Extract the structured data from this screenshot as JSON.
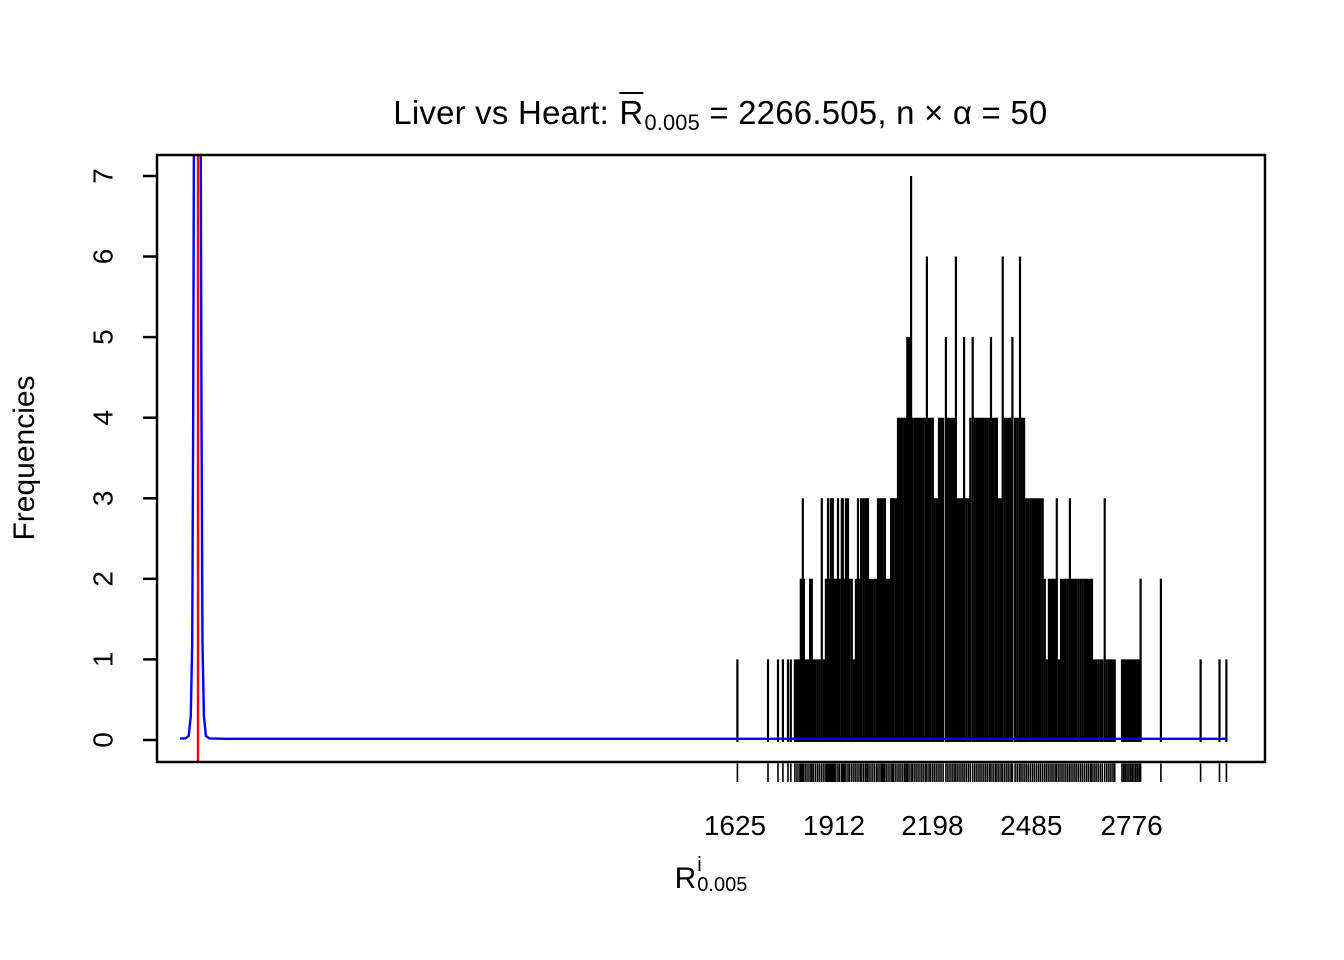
{
  "canvas": {
    "background": "#ffffff"
  },
  "chart_data": {
    "type": "bar",
    "subtype": "spike-histogram-with-density-and-rug",
    "title": {
      "prefix": "Liver vs Heart: ",
      "stat": "R",
      "stat_sub": "0.005",
      "rest": " = 2266.505, n × α = 50"
    },
    "xlabel": {
      "base": "R",
      "sup": "i",
      "sub": "0.005"
    },
    "ylabel": "Frequencies",
    "x_tick_labels": [
      1625,
      1912,
      2198,
      2485,
      2776
    ],
    "y_tick_labels": [
      0,
      1,
      2,
      3,
      4,
      5,
      6,
      7
    ],
    "xlim": [
      -52,
      3163
    ],
    "ylim": [
      -0.273,
      7.26
    ],
    "grid": false,
    "legend": null,
    "colors": {
      "spikes": "#000000",
      "density": "#0000ff",
      "observed_line": "#ff0000",
      "frame": "#000000",
      "text": "#000000"
    },
    "observed_vline_x": 67,
    "rug_from_spikes": true,
    "density_points": [
      [
        15,
        0.02
      ],
      [
        30,
        0.02
      ],
      [
        40,
        0.05
      ],
      [
        46,
        0.3
      ],
      [
        50,
        1.2
      ],
      [
        53,
        4
      ],
      [
        56,
        9
      ],
      [
        60,
        13
      ],
      [
        65,
        14
      ],
      [
        70,
        13
      ],
      [
        74,
        9
      ],
      [
        77,
        4
      ],
      [
        80,
        1.2
      ],
      [
        84,
        0.3
      ],
      [
        90,
        0.05
      ],
      [
        100,
        0.02
      ],
      [
        150,
        0.015
      ],
      [
        3052,
        0.015
      ]
    ],
    "spikes": [
      [
        1632,
        1
      ],
      [
        1721,
        1
      ],
      [
        1750,
        1
      ],
      [
        1764,
        1
      ],
      [
        1779,
        1
      ],
      [
        1787,
        1
      ],
      [
        1799,
        1
      ],
      [
        1805,
        1
      ],
      [
        1811,
        1
      ],
      [
        1816,
        2
      ],
      [
        1820,
        2
      ],
      [
        1822,
        3
      ],
      [
        1825,
        2
      ],
      [
        1831,
        1
      ],
      [
        1837,
        1
      ],
      [
        1843,
        2
      ],
      [
        1848,
        2
      ],
      [
        1853,
        1
      ],
      [
        1859,
        1
      ],
      [
        1865,
        1
      ],
      [
        1871,
        1
      ],
      [
        1877,
        3
      ],
      [
        1883,
        1
      ],
      [
        1889,
        2
      ],
      [
        1893,
        2
      ],
      [
        1895,
        3
      ],
      [
        1899,
        2
      ],
      [
        1903,
        3
      ],
      [
        1907,
        2
      ],
      [
        1909,
        3
      ],
      [
        1913,
        2
      ],
      [
        1918,
        2
      ],
      [
        1924,
        3
      ],
      [
        1929,
        2
      ],
      [
        1935,
        3
      ],
      [
        1938,
        3
      ],
      [
        1942,
        2
      ],
      [
        1947,
        3
      ],
      [
        1953,
        3
      ],
      [
        1958,
        2
      ],
      [
        1964,
        2
      ],
      [
        1970,
        1
      ],
      [
        1976,
        2
      ],
      [
        1982,
        3
      ],
      [
        1988,
        2
      ],
      [
        1991,
        3
      ],
      [
        1997,
        3
      ],
      [
        2003,
        3
      ],
      [
        2008,
        3
      ],
      [
        2011,
        3
      ],
      [
        2017,
        2
      ],
      [
        2023,
        2
      ],
      [
        2029,
        2
      ],
      [
        2035,
        2
      ],
      [
        2040,
        3
      ],
      [
        2046,
        3
      ],
      [
        2051,
        3
      ],
      [
        2054,
        3
      ],
      [
        2058,
        2
      ],
      [
        2060,
        3
      ],
      [
        2066,
        2
      ],
      [
        2072,
        2
      ],
      [
        2078,
        3
      ],
      [
        2083,
        3
      ],
      [
        2086,
        3
      ],
      [
        2092,
        3
      ],
      [
        2098,
        4
      ],
      [
        2104,
        4
      ],
      [
        2110,
        4
      ],
      [
        2116,
        4
      ],
      [
        2121,
        4
      ],
      [
        2125,
        5
      ],
      [
        2130,
        5
      ],
      [
        2136,
        7
      ],
      [
        2141,
        4
      ],
      [
        2147,
        4
      ],
      [
        2153,
        4
      ],
      [
        2159,
        4
      ],
      [
        2165,
        4
      ],
      [
        2171,
        4
      ],
      [
        2177,
        4
      ],
      [
        2182,
        6
      ],
      [
        2188,
        4
      ],
      [
        2193,
        4
      ],
      [
        2199,
        4
      ],
      [
        2205,
        3
      ],
      [
        2211,
        3
      ],
      [
        2217,
        4
      ],
      [
        2223,
        4
      ],
      [
        2229,
        4
      ],
      [
        2237,
        5
      ],
      [
        2243,
        4
      ],
      [
        2249,
        4
      ],
      [
        2255,
        4
      ],
      [
        2261,
        4
      ],
      [
        2266,
        6
      ],
      [
        2272,
        3
      ],
      [
        2278,
        3
      ],
      [
        2284,
        3
      ],
      [
        2290,
        5
      ],
      [
        2296,
        3
      ],
      [
        2302,
        3
      ],
      [
        2308,
        4
      ],
      [
        2315,
        5
      ],
      [
        2321,
        4
      ],
      [
        2327,
        4
      ],
      [
        2333,
        4
      ],
      [
        2339,
        4
      ],
      [
        2345,
        4
      ],
      [
        2351,
        4
      ],
      [
        2357,
        4
      ],
      [
        2363,
        4
      ],
      [
        2368,
        5
      ],
      [
        2374,
        4
      ],
      [
        2380,
        4
      ],
      [
        2385,
        4
      ],
      [
        2391,
        3
      ],
      [
        2397,
        3
      ],
      [
        2402,
        6
      ],
      [
        2408,
        4
      ],
      [
        2414,
        4
      ],
      [
        2420,
        4
      ],
      [
        2426,
        4
      ],
      [
        2430,
        5
      ],
      [
        2438,
        4
      ],
      [
        2444,
        4
      ],
      [
        2450,
        4
      ],
      [
        2452,
        6
      ],
      [
        2458,
        4
      ],
      [
        2464,
        4
      ],
      [
        2470,
        3
      ],
      [
        2476,
        3
      ],
      [
        2482,
        3
      ],
      [
        2488,
        3
      ],
      [
        2494,
        3
      ],
      [
        2500,
        3
      ],
      [
        2506,
        3
      ],
      [
        2512,
        3
      ],
      [
        2518,
        3
      ],
      [
        2524,
        2
      ],
      [
        2530,
        1
      ],
      [
        2536,
        2
      ],
      [
        2542,
        2
      ],
      [
        2548,
        2
      ],
      [
        2554,
        2
      ],
      [
        2559,
        3
      ],
      [
        2565,
        1
      ],
      [
        2571,
        2
      ],
      [
        2577,
        2
      ],
      [
        2583,
        2
      ],
      [
        2589,
        2
      ],
      [
        2595,
        2
      ],
      [
        2597,
        3
      ],
      [
        2603,
        2
      ],
      [
        2609,
        2
      ],
      [
        2615,
        2
      ],
      [
        2621,
        2
      ],
      [
        2627,
        2
      ],
      [
        2633,
        2
      ],
      [
        2639,
        2
      ],
      [
        2645,
        2
      ],
      [
        2651,
        2
      ],
      [
        2657,
        2
      ],
      [
        2661,
        2
      ],
      [
        2667,
        1
      ],
      [
        2673,
        1
      ],
      [
        2679,
        1
      ],
      [
        2685,
        1
      ],
      [
        2691,
        1
      ],
      [
        2698,
        3
      ],
      [
        2704,
        1
      ],
      [
        2710,
        1
      ],
      [
        2716,
        1
      ],
      [
        2722,
        1
      ],
      [
        2727,
        1
      ],
      [
        2748,
        1
      ],
      [
        2753,
        1
      ],
      [
        2758,
        1
      ],
      [
        2763,
        1
      ],
      [
        2768,
        1
      ],
      [
        2773,
        1
      ],
      [
        2778,
        1
      ],
      [
        2783,
        1
      ],
      [
        2788,
        1
      ],
      [
        2793,
        1
      ],
      [
        2798,
        1
      ],
      [
        2802,
        2
      ],
      [
        2861,
        2
      ],
      [
        2976,
        1
      ],
      [
        3031,
        1
      ],
      [
        3051,
        1
      ]
    ]
  }
}
